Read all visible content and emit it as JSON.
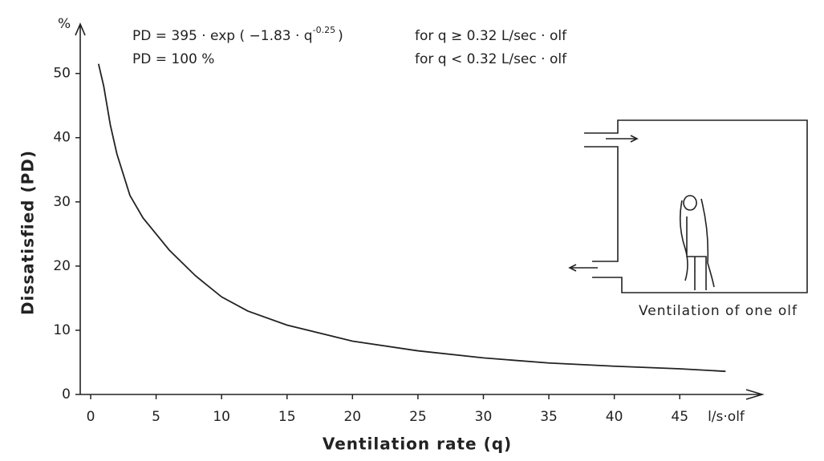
{
  "chart_data": {
    "type": "line",
    "y_unit": "%",
    "y_label": "Dissatisfied (PD)",
    "x_label": "Ventilation rate (q)",
    "x_unit": "l/s·olf",
    "formula_1": {
      "prefix": "PD = 395 · exp ( −1.83 · q",
      "exponent": "-0.25",
      "suffix": ")",
      "condition": "for q ≥ 0.32 L/sec · olf"
    },
    "formula_2": {
      "text": "PD = 100 %",
      "condition": "for q < 0.32 L/sec · olf"
    },
    "inset_caption": "Ventilation of one olf",
    "x": [
      0.6,
      1,
      1.5,
      2,
      3,
      4,
      5,
      6,
      8,
      10,
      12,
      15,
      20,
      25,
      30,
      35,
      40,
      45,
      48.5
    ],
    "series": [
      {
        "color": "#222222",
        "values": [
          51.5,
          48,
          42,
          37.5,
          31,
          27.5,
          25,
          22.5,
          18.5,
          15.2,
          13,
          10.8,
          8.3,
          6.8,
          5.7,
          4.9,
          4.4,
          4.0,
          3.6
        ]
      }
    ],
    "xlim": [
      0,
      51.3
    ],
    "ylim": [
      0,
      57.7
    ],
    "xticks": [
      0,
      5,
      10,
      15,
      20,
      25,
      30,
      35,
      40,
      45
    ],
    "yticks": [
      0,
      10,
      20,
      30,
      40,
      50
    ],
    "grid": false
  }
}
